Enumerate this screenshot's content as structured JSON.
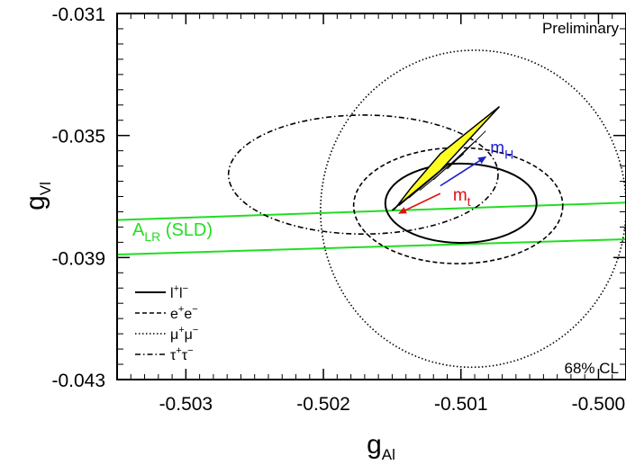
{
  "chart_data": {
    "type": "scatter",
    "title": "",
    "xlabel": "g",
    "xlabel_sub": "Al",
    "ylabel": "g",
    "ylabel_sub": "Vl",
    "xlim": [
      -0.5035,
      -0.4998
    ],
    "ylim": [
      -0.043,
      -0.031
    ],
    "xticks": [
      -0.503,
      -0.502,
      -0.501,
      -0.5
    ],
    "xtick_labels": [
      "-0.503",
      "-0.502",
      "-0.501",
      "-0.500"
    ],
    "yticks": [
      -0.031,
      -0.035,
      -0.039,
      -0.043
    ],
    "ytick_labels": [
      "-0.031",
      "-0.035",
      "-0.039",
      "-0.043"
    ],
    "grid": false,
    "annotations": {
      "preliminary": "Preliminary",
      "confidence": "68% CL"
    },
    "legend": {
      "placement": "bottom-left",
      "entries": [
        {
          "label": "l",
          "sup1": "+",
          "label2": "l",
          "sup2": "−",
          "style": "solid"
        },
        {
          "label": "e",
          "sup1": "+",
          "label2": "e",
          "sup2": "−",
          "style": "dashed"
        },
        {
          "label": "μ",
          "sup1": "+",
          "label2": "μ",
          "sup2": "−",
          "style": "dotted"
        },
        {
          "label": "τ",
          "sup1": "+",
          "label2": "τ",
          "sup2": "−",
          "style": "dashdot"
        }
      ]
    },
    "ellipses": [
      {
        "name": "l+l-",
        "style": "solid",
        "color": "#000000",
        "cx": -0.501,
        "cy": -0.03722,
        "rx": 0.00055,
        "ry": 0.0013,
        "angle": 0
      },
      {
        "name": "e+e-",
        "style": "dashed",
        "color": "#000000",
        "cx": -0.50102,
        "cy": -0.0373,
        "rx": 0.00076,
        "ry": 0.0019,
        "angle": 0
      },
      {
        "name": "mu+mu-",
        "style": "dotted",
        "color": "#000000",
        "cx": -0.50091,
        "cy": -0.0374,
        "rx": 0.00111,
        "ry": 0.0052,
        "angle": 8
      },
      {
        "name": "tau+tau-",
        "style": "dashdot",
        "color": "#000000",
        "cx": -0.50171,
        "cy": -0.03628,
        "rx": 0.00098,
        "ry": 0.00195,
        "angle": 0
      }
    ],
    "sld_band": {
      "label": "A",
      "label_sub": "LR",
      "label_rest": " (SLD)",
      "color": "#22dd22",
      "upper": {
        "x": [
          -0.5035,
          -0.4998
        ],
        "y": [
          -0.03777,
          -0.0372
        ]
      },
      "lower": {
        "x": [
          -0.5035,
          -0.4998
        ],
        "y": [
          -0.0389,
          -0.0384
        ]
      }
    },
    "sm_prediction": {
      "color": "#ffff22",
      "outline": [
        [
          -0.5015,
          -0.03745
        ],
        [
          -0.50115,
          -0.03615
        ],
        [
          -0.50072,
          -0.03405
        ],
        [
          -0.50115,
          -0.0356
        ],
        [
          -0.50136,
          -0.0367
        ],
        [
          -0.50148,
          -0.0374
        ]
      ],
      "inner_lines": [
        [
          [
            -0.50145,
            -0.0373
          ],
          [
            -0.50115,
            -0.03615
          ]
        ],
        [
          [
            -0.50138,
            -0.03705
          ],
          [
            -0.50108,
            -0.0359
          ]
        ],
        [
          [
            -0.5013,
            -0.0368
          ],
          [
            -0.50098,
            -0.0356
          ]
        ],
        [
          [
            -0.5012,
            -0.03645
          ],
          [
            -0.5009,
            -0.0352
          ]
        ],
        [
          [
            -0.5011,
            -0.0361
          ],
          [
            -0.50082,
            -0.03485
          ]
        ]
      ]
    },
    "arrows": [
      {
        "label": "m",
        "label_sub": "H",
        "color": "#1f1fcf",
        "from": [
          -0.50115,
          -0.03665
        ],
        "to": [
          -0.50082,
          -0.0357
        ]
      },
      {
        "label": "m",
        "label_sub": "t",
        "color": "#e01010",
        "from": [
          -0.50115,
          -0.0369
        ],
        "to": [
          -0.50145,
          -0.03755
        ]
      }
    ]
  }
}
